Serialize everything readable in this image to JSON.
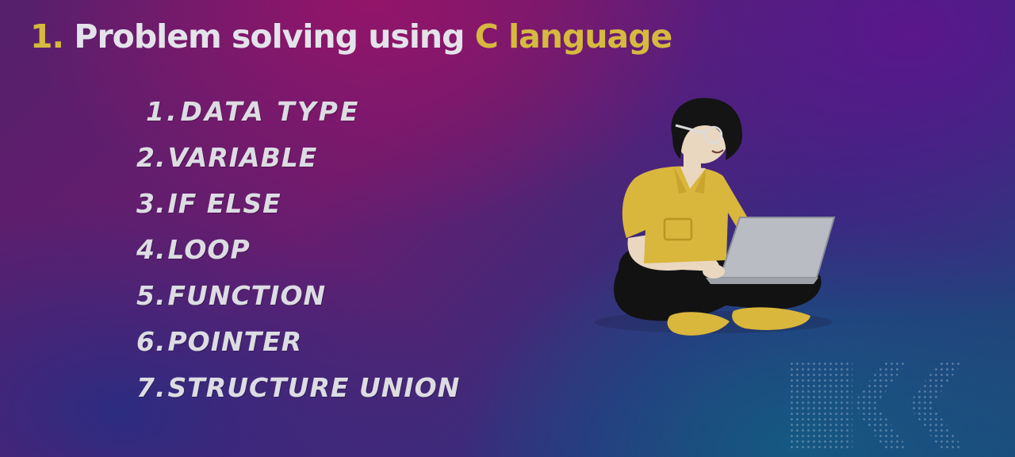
{
  "slide": {
    "title": {
      "number": "1.",
      "text": "Problem solving using",
      "accent": "C language"
    },
    "topics": [
      {
        "num": "1.",
        "label": "DATA TYPE"
      },
      {
        "num": "2.",
        "label": "VARIABLE"
      },
      {
        "num": "3.",
        "label": "IF ELSE"
      },
      {
        "num": "4.",
        "label": "LOOP"
      },
      {
        "num": "5.",
        "label": "FUNCTION"
      },
      {
        "num": "6.",
        "label": "POINTER"
      },
      {
        "num": "7.",
        "label": "STRUCTURE UNION"
      }
    ],
    "colors": {
      "title_accent": "#d6b93e",
      "title_text": "#e4e2ea",
      "list_text": "#dcdce2",
      "shirt": "#d9b63c",
      "pants": "#121212",
      "laptop": "#b9bcc3"
    },
    "icons": {
      "illustration": "woman-with-laptop-illustration",
      "decoration": "dotted-chevrons-decoration"
    }
  }
}
